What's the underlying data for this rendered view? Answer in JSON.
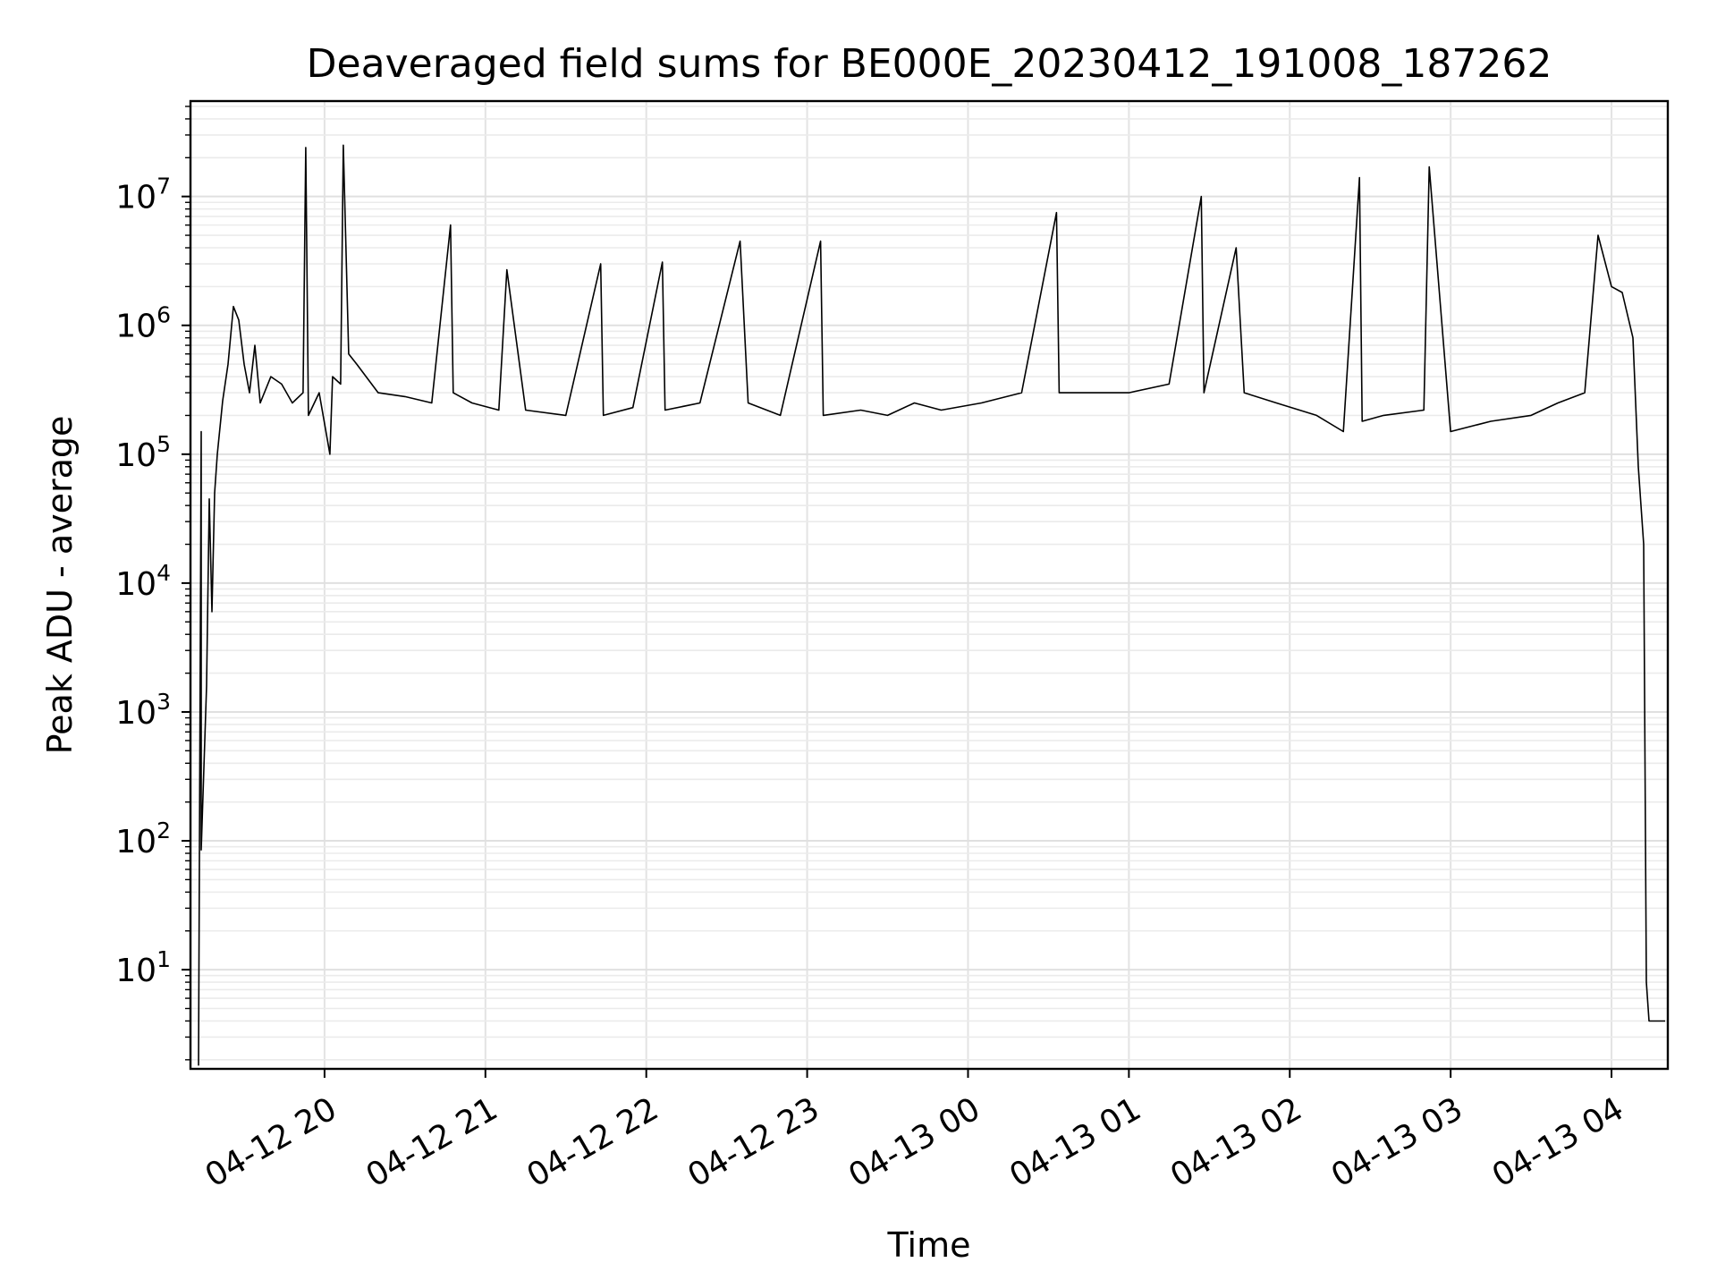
{
  "chart_data": {
    "type": "line",
    "title": "Deaveraged field sums for BE000E_20230412_191008_187262",
    "xlabel": "Time",
    "ylabel": "Peak ADU - average",
    "y_scale": "log",
    "ylim": [
      1.7,
      55000000
    ],
    "xlim": [
      "2023-04-12 19:10",
      "2023-04-13 04:21"
    ],
    "grid": "major and minor",
    "x_ticks": [
      {
        "t": "2023-04-12 20:00",
        "label": "04-12 20"
      },
      {
        "t": "2023-04-12 21:00",
        "label": "04-12 21"
      },
      {
        "t": "2023-04-12 22:00",
        "label": "04-12 22"
      },
      {
        "t": "2023-04-12 23:00",
        "label": "04-12 23"
      },
      {
        "t": "2023-04-13 00:00",
        "label": "04-13 00"
      },
      {
        "t": "2023-04-13 01:00",
        "label": "04-13 01"
      },
      {
        "t": "2023-04-13 02:00",
        "label": "04-13 02"
      },
      {
        "t": "2023-04-13 03:00",
        "label": "04-13 03"
      },
      {
        "t": "2023-04-13 04:00",
        "label": "04-13 04"
      }
    ],
    "y_ticks": [
      {
        "value": 10,
        "base": "10",
        "exp": "1"
      },
      {
        "value": 100,
        "base": "10",
        "exp": "2"
      },
      {
        "value": 1000,
        "base": "10",
        "exp": "3"
      },
      {
        "value": 10000,
        "base": "10",
        "exp": "4"
      },
      {
        "value": 100000,
        "base": "10",
        "exp": "5"
      },
      {
        "value": 1000000,
        "base": "10",
        "exp": "6"
      },
      {
        "value": 10000000,
        "base": "10",
        "exp": "7"
      }
    ],
    "series": [
      {
        "color": "#000000",
        "x": [
          "2023-04-12 19:13",
          "2023-04-12 19:14",
          "2023-04-12 19:14",
          "2023-04-12 19:16",
          "2023-04-12 19:17",
          "2023-04-12 19:18",
          "2023-04-12 19:19",
          "2023-04-12 19:20",
          "2023-04-12 19:22",
          "2023-04-12 19:24",
          "2023-04-12 19:26",
          "2023-04-12 19:28",
          "2023-04-12 19:30",
          "2023-04-12 19:32",
          "2023-04-12 19:34",
          "2023-04-12 19:36",
          "2023-04-12 19:40",
          "2023-04-12 19:44",
          "2023-04-12 19:48",
          "2023-04-12 19:52",
          "2023-04-12 19:53",
          "2023-04-12 19:54",
          "2023-04-12 19:58",
          "2023-04-12 20:02",
          "2023-04-12 20:03",
          "2023-04-12 20:06",
          "2023-04-12 20:07",
          "2023-04-12 20:09",
          "2023-04-12 20:12",
          "2023-04-12 20:20",
          "2023-04-12 20:30",
          "2023-04-12 20:40",
          "2023-04-12 20:47",
          "2023-04-12 20:48",
          "2023-04-12 20:55",
          "2023-04-12 21:05",
          "2023-04-12 21:08",
          "2023-04-12 21:15",
          "2023-04-12 21:30",
          "2023-04-12 21:43",
          "2023-04-12 21:44",
          "2023-04-12 21:55",
          "2023-04-12 22:06",
          "2023-04-12 22:07",
          "2023-04-12 22:20",
          "2023-04-12 22:35",
          "2023-04-12 22:38",
          "2023-04-12 22:50",
          "2023-04-12 23:05",
          "2023-04-12 23:06",
          "2023-04-12 23:20",
          "2023-04-12 23:30",
          "2023-04-12 23:40",
          "2023-04-12 23:50",
          "2023-04-13 00:05",
          "2023-04-13 00:20",
          "2023-04-13 00:33",
          "2023-04-13 00:34",
          "2023-04-13 00:45",
          "2023-04-13 01:00",
          "2023-04-13 01:15",
          "2023-04-13 01:27",
          "2023-04-13 01:28",
          "2023-04-13 01:40",
          "2023-04-13 01:43",
          "2023-04-13 01:55",
          "2023-04-13 02:10",
          "2023-04-13 02:20",
          "2023-04-13 02:26",
          "2023-04-13 02:27",
          "2023-04-13 02:35",
          "2023-04-13 02:50",
          "2023-04-13 02:52",
          "2023-04-13 03:00",
          "2023-04-13 03:15",
          "2023-04-13 03:30",
          "2023-04-13 03:40",
          "2023-04-13 03:50",
          "2023-04-13 03:55",
          "2023-04-13 04:00",
          "2023-04-13 04:04",
          "2023-04-13 04:08",
          "2023-04-13 04:10",
          "2023-04-13 04:12",
          "2023-04-13 04:13",
          "2023-04-13 04:14",
          "2023-04-13 04:20"
        ],
        "y": [
          1.8,
          150000,
          85,
          1600,
          45000,
          6000,
          50000,
          100000,
          260000,
          500000,
          1400000,
          1100000,
          500000,
          300000,
          700000,
          250000,
          400000,
          350000,
          250000,
          300000,
          24000000,
          200000,
          300000,
          100000,
          400000,
          350000,
          25000000,
          600000,
          500000,
          300000,
          280000,
          250000,
          6000000,
          300000,
          250000,
          220000,
          2700000,
          220000,
          200000,
          3000000,
          200000,
          230000,
          3100000,
          220000,
          250000,
          4500000,
          250000,
          200000,
          4500000,
          200000,
          220000,
          200000,
          250000,
          220000,
          250000,
          300000,
          7500000,
          300000,
          300000,
          300000,
          350000,
          10000000,
          300000,
          4000000,
          300000,
          250000,
          200000,
          150000,
          14000000,
          180000,
          200000,
          220000,
          17000000,
          150000,
          180000,
          200000,
          250000,
          300000,
          5000000,
          2000000,
          1800000,
          800000,
          80000,
          20000,
          8,
          4,
          4
        ]
      }
    ]
  }
}
